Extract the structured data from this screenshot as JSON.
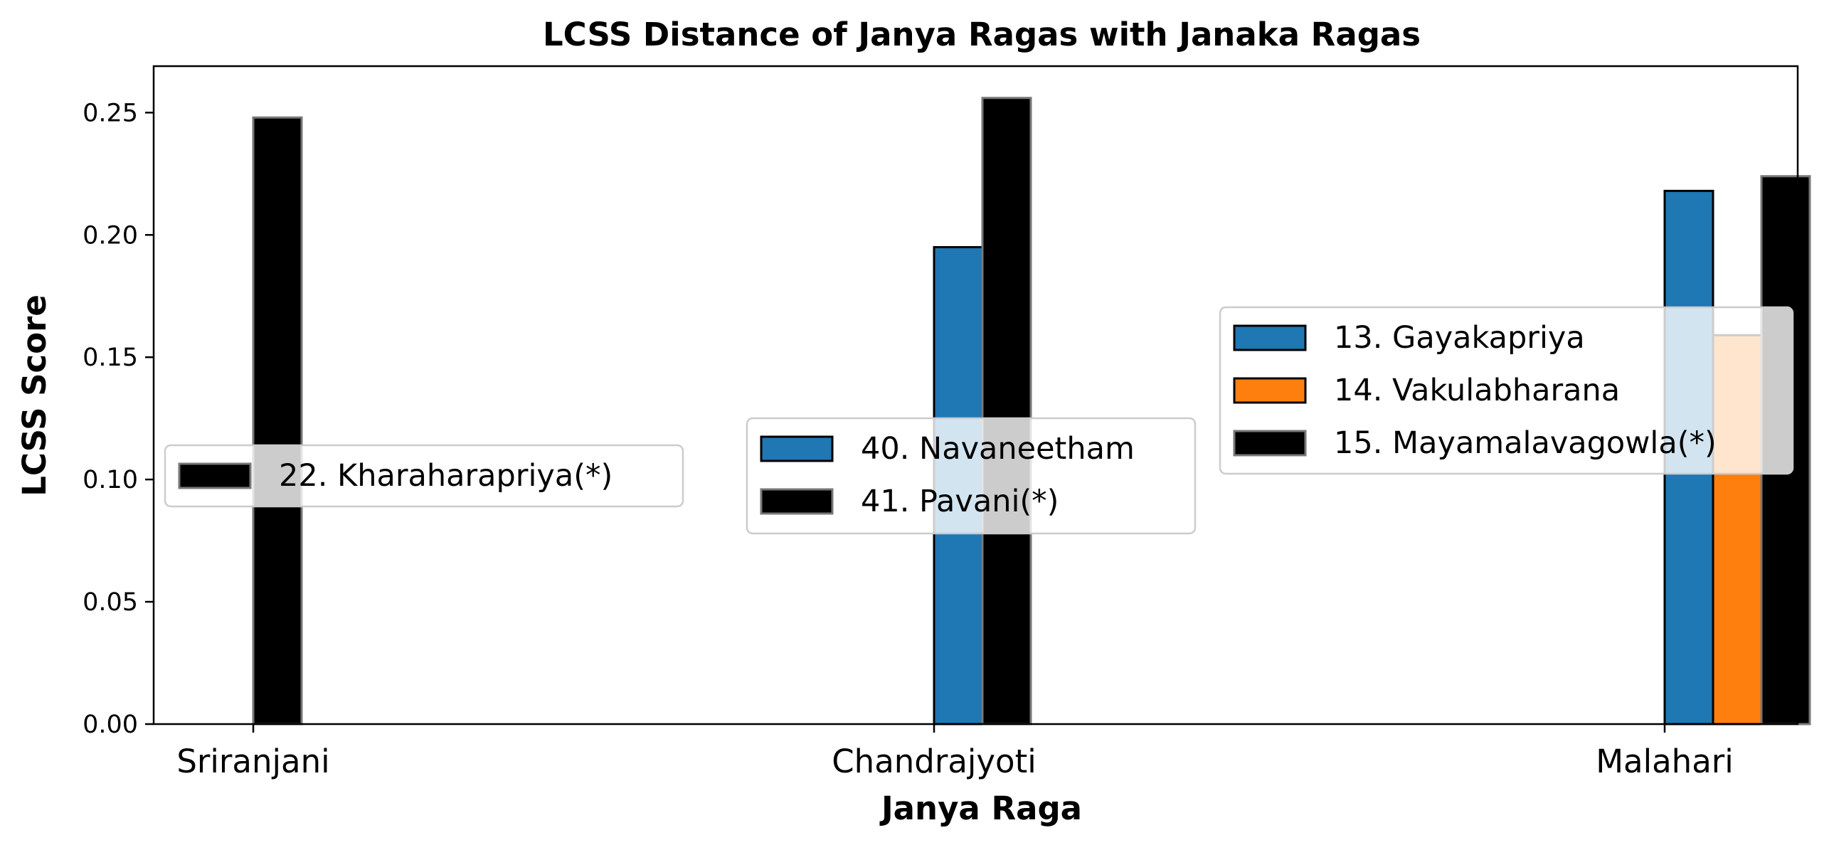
{
  "chart_data": {
    "type": "bar",
    "title": "LCSS Distance of Janya Ragas with Janaka Ragas",
    "xlabel": "Janya Raga",
    "ylabel": "LCSS Score",
    "ylim": [
      0,
      0.269
    ],
    "yticks": [
      "0.00",
      "0.05",
      "0.10",
      "0.15",
      "0.20",
      "0.25"
    ],
    "grid": false,
    "groups": [
      {
        "category": "Sriranjani",
        "legend_placement": "center-left",
        "bars": [
          {
            "name": "22. Kharaharapriya(*)",
            "value": 0.248,
            "color": "#000000",
            "edge": "#777777"
          }
        ]
      },
      {
        "category": "Chandrajyoti",
        "legend_placement": "center",
        "bars": [
          {
            "name": "40. Navaneetham",
            "value": 0.195,
            "color": "#1f77b4",
            "edge": "#000000"
          },
          {
            "name": "41. Pavani(*)",
            "value": 0.256,
            "color": "#000000",
            "edge": "#777777"
          }
        ]
      },
      {
        "category": "Malahari",
        "legend_placement": "center-right",
        "bars": [
          {
            "name": "13. Gayakapriya",
            "value": 0.218,
            "color": "#1f77b4",
            "edge": "#000000"
          },
          {
            "name": "14. Vakulabharana",
            "value": 0.159,
            "color": "#ff7f0e",
            "edge": "#000000"
          },
          {
            "name": "15. Mayamalavagowla(*)",
            "value": 0.224,
            "color": "#000000",
            "edge": "#777777"
          }
        ]
      }
    ]
  }
}
